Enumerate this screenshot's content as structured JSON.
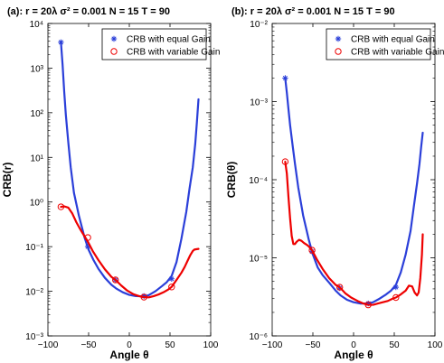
{
  "chart_data": [
    {
      "type": "line",
      "title": "(a):   r = 20λ    σ² = 0.001    N = 15    T = 90",
      "xlabel": "Angle  θ",
      "ylabel": "CRB(r)",
      "xlim": [
        -100,
        100
      ],
      "ylim": [
        0.001,
        10000
      ],
      "yscale": "log",
      "xticks": [
        "−100",
        "−50",
        "0",
        "50",
        "100"
      ],
      "yticks": [
        "10⁻³",
        "10⁻²",
        "10⁻¹",
        "10⁰",
        "10¹",
        "10²",
        "10³",
        "10⁴"
      ],
      "grid": false,
      "legend_position": "top-right",
      "series": [
        {
          "name": "CRB with equal Gain",
          "color": "#2b3fd9",
          "marker": "asterisk",
          "x": [
            -84,
            -82,
            -80,
            -78,
            -75,
            -72,
            -68,
            -62,
            -55,
            -50,
            -44,
            -38,
            -30,
            -22,
            -16,
            -8,
            0,
            8,
            18,
            24,
            32,
            40,
            46,
            52,
            58,
            64,
            70,
            74,
            78,
            81,
            83,
            85
          ],
          "y": [
            3800,
            1200,
            300,
            90,
            22,
            6,
            1.6,
            0.5,
            0.16,
            0.085,
            0.05,
            0.032,
            0.02,
            0.014,
            0.0115,
            0.0095,
            0.0083,
            0.0078,
            0.0077,
            0.0082,
            0.01,
            0.013,
            0.016,
            0.022,
            0.045,
            0.15,
            0.6,
            2,
            6,
            20,
            60,
            200
          ],
          "marker_x": [
            -84,
            -51,
            -17,
            18,
            52
          ],
          "marker_y": [
            3800,
            0.1,
            0.018,
            0.0078,
            0.019
          ]
        },
        {
          "name": "CRB with variable Gain",
          "color": "#ee0000",
          "marker": "circle",
          "x": [
            -84,
            -80,
            -75,
            -70,
            -65,
            -60,
            -55,
            -51,
            -45,
            -38,
            -30,
            -22,
            -17,
            -10,
            -3,
            5,
            12,
            18,
            24,
            30,
            36,
            42,
            48,
            52,
            58,
            64,
            68,
            72,
            75,
            78,
            80,
            83,
            85
          ],
          "y": [
            0.78,
            0.8,
            0.75,
            0.55,
            0.35,
            0.24,
            0.17,
            0.13,
            0.08,
            0.05,
            0.031,
            0.021,
            0.018,
            0.0135,
            0.0105,
            0.0086,
            0.0078,
            0.0074,
            0.0073,
            0.0078,
            0.0085,
            0.0095,
            0.011,
            0.0125,
            0.018,
            0.026,
            0.035,
            0.05,
            0.065,
            0.08,
            0.086,
            0.088,
            0.089
          ],
          "marker_x": [
            -84,
            -51,
            -17,
            18,
            52
          ],
          "marker_y": [
            0.78,
            0.16,
            0.018,
            0.0074,
            0.0125
          ]
        }
      ]
    },
    {
      "type": "line",
      "title": "(b):   r = 20λ    σ² = 0.001    N = 15    T = 90",
      "xlabel": "Angle  θ",
      "ylabel": "CRB(θ)",
      "xlim": [
        -100,
        100
      ],
      "ylim": [
        1e-06,
        0.01
      ],
      "yscale": "log",
      "xticks": [
        "−100",
        "−50",
        "0",
        "50",
        "100"
      ],
      "yticks": [
        "10⁻⁶",
        "10⁻⁵",
        "10⁻⁴",
        "10⁻³",
        "10⁻²"
      ],
      "grid": false,
      "legend_position": "top-right",
      "series": [
        {
          "name": "CRB with equal Gain",
          "color": "#2b3fd9",
          "marker": "asterisk",
          "x": [
            -84,
            -82,
            -80,
            -78,
            -75,
            -72,
            -68,
            -62,
            -55,
            -50,
            -44,
            -38,
            -30,
            -22,
            -16,
            -8,
            0,
            8,
            18,
            24,
            32,
            40,
            46,
            52,
            58,
            64,
            70,
            74,
            78,
            81,
            83,
            85
          ],
          "y": [
            0.002,
            0.0013,
            0.0008,
            0.0005,
            0.00028,
            0.00016,
            8e-05,
            3.5e-05,
            1.7e-05,
            1.1e-05,
            7.5e-06,
            6e-06,
            4.8e-06,
            3.8e-06,
            3.3e-06,
            2.9e-06,
            2.7e-06,
            2.6e-06,
            2.6e-06,
            2.7e-06,
            3e-06,
            3.4e-06,
            3.8e-06,
            4.5e-06,
            6.5e-06,
            1.1e-05,
            2.2e-05,
            4.5e-05,
            9e-05,
            0.00016,
            0.00026,
            0.0004
          ],
          "marker_x": [
            -84,
            -51,
            -17,
            18,
            52
          ],
          "marker_y": [
            0.002,
            1.2e-05,
            4.1e-06,
            2.6e-06,
            4.2e-06
          ]
        },
        {
          "name": "CRB with variable Gain",
          "color": "#ee0000",
          "marker": "circle",
          "x": [
            -84,
            -82,
            -80,
            -78,
            -76,
            -74,
            -72,
            -70,
            -67,
            -64,
            -61,
            -58,
            -55,
            -51,
            -45,
            -38,
            -30,
            -22,
            -17,
            -10,
            -3,
            5,
            12,
            18,
            24,
            30,
            36,
            42,
            48,
            52,
            58,
            64,
            68,
            72,
            75,
            78,
            80,
            82,
            84,
            85
          ],
          "y": [
            0.00017,
            0.00012,
            6e-05,
            3.2e-05,
            1.9e-05,
            1.5e-05,
            1.5e-05,
            1.6e-05,
            1.7e-05,
            1.65e-05,
            1.55e-05,
            1.48e-05,
            1.4e-05,
            1.25e-05,
            9.5e-06,
            7.2e-06,
            5.5e-06,
            4.5e-06,
            4.2e-06,
            3.5e-06,
            3.1e-06,
            2.8e-06,
            2.6e-06,
            2.5e-06,
            2.5e-06,
            2.6e-06,
            2.7e-06,
            2.8e-06,
            3e-06,
            3.1e-06,
            3.4e-06,
            3.8e-06,
            4.4e-06,
            4.3e-06,
            3.6e-06,
            3.3e-06,
            3.6e-06,
            5.5e-06,
            1.1e-05,
            2e-05
          ],
          "marker_x": [
            -84,
            -51,
            -17,
            18,
            52
          ],
          "marker_y": [
            0.00017,
            1.25e-05,
            4.2e-06,
            2.5e-06,
            3.1e-06
          ]
        }
      ]
    }
  ]
}
